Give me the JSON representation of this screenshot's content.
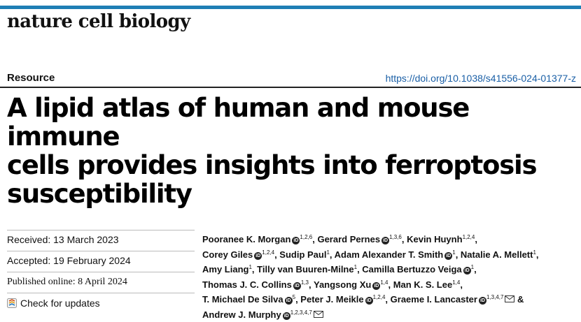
{
  "journal": "nature cell biology",
  "article_type": "Resource",
  "doi": "https://doi.org/10.1038/s41556-024-01377-z",
  "title_lines": [
    "A lipid atlas of human and mouse immune",
    "cells provides insights into ferroptosis",
    "susceptibility"
  ],
  "meta": {
    "received": "Received: 13 March 2023",
    "accepted": "Accepted: 19 February 2024",
    "published": "Published online: 8 April 2024",
    "check_updates": "Check for updates"
  },
  "authors": [
    {
      "name": "Pooranee K. Morgan",
      "orcid": true,
      "aff": "1,2,6",
      "sep": ", "
    },
    {
      "name": "Gerard Pernes",
      "orcid": true,
      "aff": "1,3,6",
      "sep": ", "
    },
    {
      "name": "Kevin Huynh",
      "orcid": false,
      "aff": "1,2,4",
      "sep": ", "
    },
    {
      "name": "Corey Giles",
      "orcid": true,
      "aff": "1,2,4",
      "sep": ", "
    },
    {
      "name": "Sudip Paul",
      "orcid": false,
      "aff": "1",
      "sep": ", "
    },
    {
      "name": "Adam Alexander T. Smith",
      "orcid": true,
      "aff": "1",
      "sep": ", "
    },
    {
      "name": "Natalie A. Mellett",
      "orcid": false,
      "aff": "1",
      "sep": ", "
    },
    {
      "name": "Amy Liang",
      "orcid": false,
      "aff": "1",
      "sep": ", "
    },
    {
      "name": "Tilly van Buuren-Milne",
      "orcid": false,
      "aff": "1",
      "sep": ", "
    },
    {
      "name": "Camilla Bertuzzo Veiga",
      "orcid": true,
      "aff": "1",
      "sep": ", "
    },
    {
      "name": "Thomas J. C. Collins",
      "orcid": true,
      "aff": "1,3",
      "sep": ", "
    },
    {
      "name": "Yangsong Xu",
      "orcid": true,
      "aff": "1,4",
      "sep": ", "
    },
    {
      "name": "Man K. S. Lee",
      "orcid": false,
      "aff": "1,4",
      "sep": ", "
    },
    {
      "name": "T. Michael De Silva",
      "orcid": true,
      "aff": "5",
      "sep": ", "
    },
    {
      "name": "Peter J. Meikle",
      "orcid": true,
      "aff": "1,2,4",
      "sep": ", "
    },
    {
      "name": "Graeme I. Lancaster",
      "orcid": true,
      "aff": "1,3,4,7",
      "sep": " & ",
      "corresponding": true
    },
    {
      "name": "Andrew J. Murphy",
      "orcid": true,
      "aff": "1,2,3,4,7",
      "sep": "",
      "corresponding": true
    }
  ],
  "colors": {
    "accent_bar": "#1e7eb5",
    "doi_link": "#1a5fa6"
  }
}
